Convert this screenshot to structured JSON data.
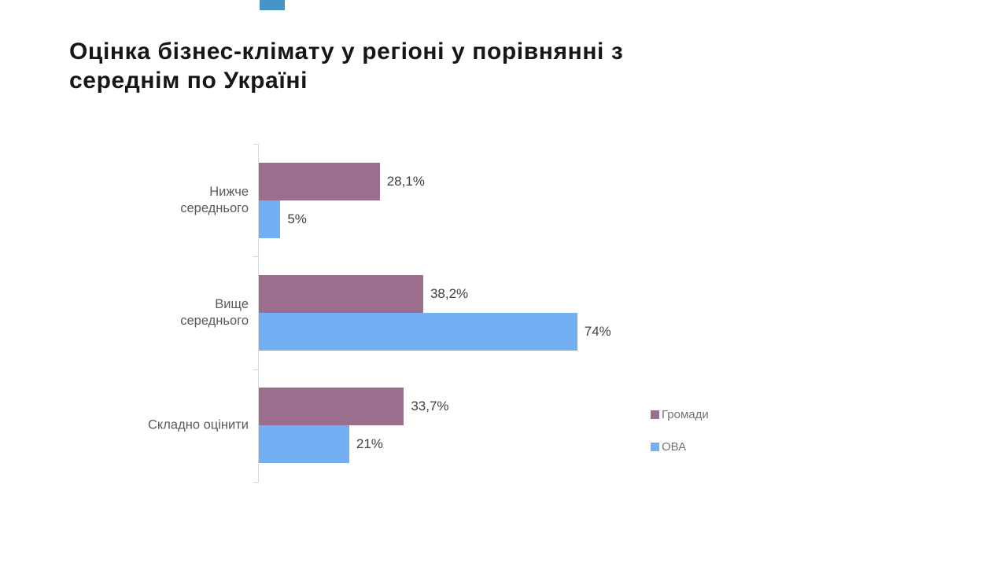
{
  "slide": {
    "background": "#FFFFFF",
    "accent_color": "#4596C7"
  },
  "title": {
    "line1": "Оцінка бізнес-клімату у регіоні у порівнянні з",
    "line2": "середнім по Україні"
  },
  "chart_data": {
    "type": "bar",
    "orientation": "horizontal",
    "title": "Оцінка бізнес-клімату у регіоні у порівнянні з середнім по Україні",
    "categories": [
      "Нижче середнього",
      "Вище середнього",
      "Складно оцінити"
    ],
    "category_display_lines": [
      [
        "Нижче",
        "середнього"
      ],
      [
        "Вище",
        "середнього"
      ],
      [
        "Складно оцінити"
      ]
    ],
    "series": [
      {
        "name": "Громади",
        "color": "#9A6E8C",
        "values": [
          28.1,
          38.2,
          33.7
        ],
        "value_labels": [
          "28,1%",
          "38,2%",
          "33,7%"
        ]
      },
      {
        "name": "ОВА",
        "color": "#74AFF4",
        "values": [
          5,
          74,
          21
        ],
        "value_labels": [
          "5%",
          "74%",
          "21%"
        ]
      }
    ],
    "xlim": [
      0,
      100
    ],
    "grid": false,
    "legend_position": "right",
    "axis_color": "#D9D9D9",
    "label_color": "#595959",
    "value_label_color": "#404040",
    "legend_text_color": "#737373"
  }
}
